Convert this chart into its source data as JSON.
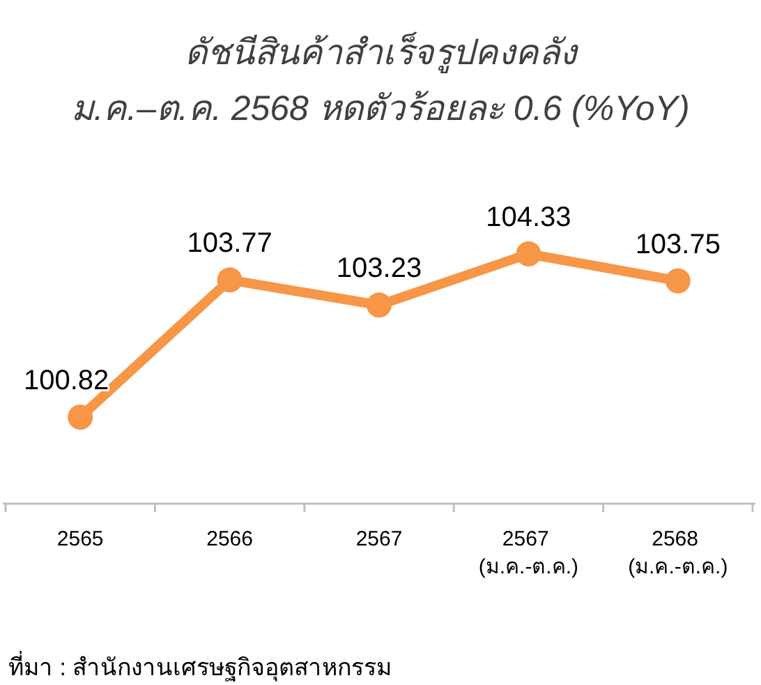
{
  "chart_data": {
    "type": "line",
    "title": "ดัชนีสินค้าสำเร็จรูปคงคลัง",
    "subtitle": "ม.ค.–ต.ค. 2568 หดตัวร้อยละ 0.6 (%YoY)",
    "categories": [
      "2565",
      "2566",
      "2567",
      "2567 (ม.ค.-ต.ค.)",
      "2568 (ม.ค.-ต.ค.)"
    ],
    "series": [
      {
        "color": "#f79646",
        "values": [
          100.82,
          103.77,
          103.23,
          104.33,
          103.75
        ]
      }
    ],
    "data_labels": true,
    "marker": "circle",
    "line_style": "solid",
    "tick_labels": "x",
    "annotations": [
      "ที่มา : สำนักงานเศรษฐกิจอุตสาหกรรม"
    ]
  }
}
